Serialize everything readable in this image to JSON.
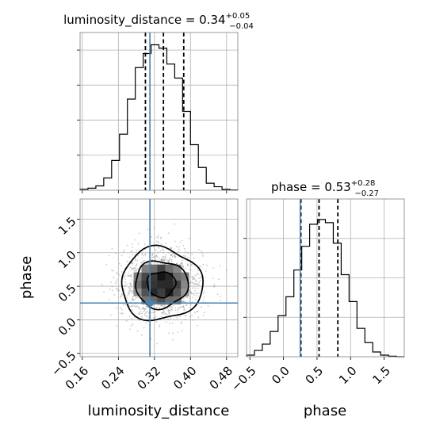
{
  "chart_data": {
    "type": "corner",
    "parameters": [
      "luminosity_distance",
      "phase"
    ],
    "truth": {
      "luminosity_distance": 0.31,
      "phase": 0.25
    },
    "truth_color": "#4682b4",
    "grid": true,
    "luminosity_distance": {
      "title_main": "luminosity_distance = 0.34",
      "title_sup": "+0.05",
      "title_sub": "−0.04",
      "xlabel": "luminosity_distance",
      "xlim": [
        0.155,
        0.505
      ],
      "xticks": [
        0.16,
        0.24,
        0.32,
        0.4,
        0.48
      ],
      "xticklabels": [
        "0.16",
        "0.24",
        "0.32",
        "0.40",
        "0.48"
      ],
      "quantiles": [
        0.3,
        0.34,
        0.385
      ],
      "hist_edges": [
        0.155,
        0.1725,
        0.19,
        0.2075,
        0.225,
        0.2425,
        0.26,
        0.2775,
        0.295,
        0.3125,
        0.33,
        0.3475,
        0.365,
        0.3825,
        0.4,
        0.4175,
        0.435,
        0.4525,
        0.47,
        0.4875,
        0.505
      ],
      "hist_counts": [
        0.6,
        1.2,
        2.5,
        7,
        17,
        32,
        52,
        70,
        78,
        83,
        81,
        72,
        64,
        45,
        26,
        13,
        4,
        2,
        0.5,
        0.2
      ],
      "hist_ymax": 90
    },
    "phase": {
      "title_main": "phase = 0.53",
      "title_sup": "+0.28",
      "title_sub": "−0.27",
      "xlabel": "phase",
      "ylabel": "phase",
      "xlim": [
        -0.55,
        1.8
      ],
      "ylim": [
        -0.55,
        1.8
      ],
      "xticks": [
        -0.5,
        0,
        0.5,
        1,
        1.5
      ],
      "xticklabels": [
        "−0.5",
        "0.0",
        "0.5",
        "1.0",
        "1.5"
      ],
      "yticks": [
        -0.5,
        0,
        0.5,
        1,
        1.5
      ],
      "yticklabels": [
        "−0.5",
        "0.0",
        "0.5",
        "1.0",
        "1.5"
      ],
      "quantiles": [
        0.26,
        0.53,
        0.81
      ],
      "hist_edges": [
        -0.55,
        -0.4325,
        -0.315,
        -0.1975,
        -0.08,
        0.0375,
        0.155,
        0.2725,
        0.39,
        0.5075,
        0.625,
        0.7425,
        0.86,
        0.9775,
        1.095,
        1.2125,
        1.33,
        1.4475,
        1.565,
        1.6825,
        1.8
      ],
      "hist_counts": [
        1,
        4,
        8,
        16,
        26,
        38,
        55,
        70,
        84,
        87,
        85,
        72,
        52,
        35,
        18,
        9,
        3,
        1,
        0.3,
        0
      ],
      "hist_ymax": 100
    },
    "joint": {
      "x": "luminosity_distance",
      "y": "phase",
      "center": [
        0.335,
        0.53
      ],
      "sigma": [
        0.045,
        0.27
      ],
      "levels_sigma": [
        0.7,
        1.3,
        2.0
      ]
    }
  }
}
